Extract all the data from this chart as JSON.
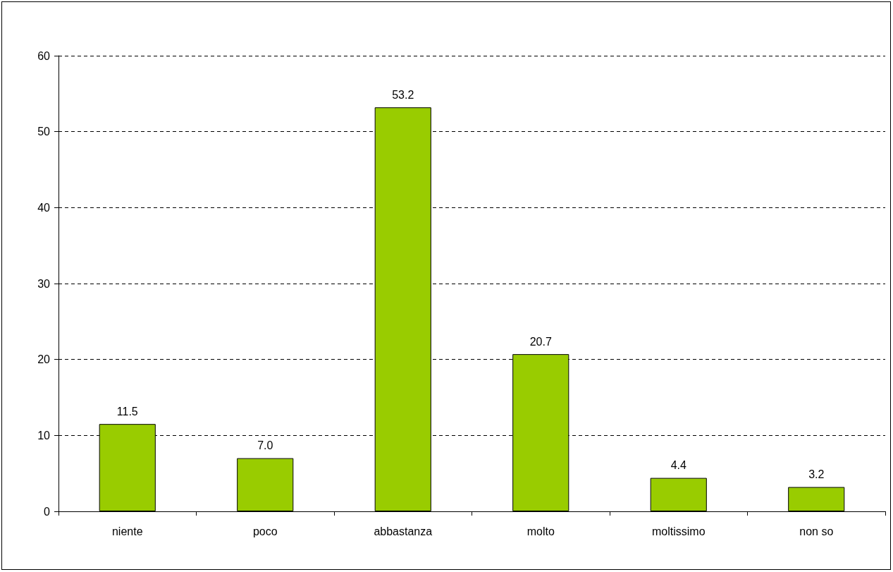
{
  "chart_data": {
    "type": "bar",
    "categories": [
      "niente",
      "poco",
      "abbastanza",
      "molto",
      "moltissimo",
      "non so"
    ],
    "values": [
      11.5,
      7.0,
      53.2,
      20.7,
      4.4,
      3.2
    ],
    "value_labels": [
      "11.5",
      "7.0",
      "53.2",
      "20.7",
      "4.4",
      "3.2"
    ],
    "color": "#99cc00",
    "ylim": [
      0,
      60
    ],
    "yticks": [
      0,
      10,
      20,
      30,
      40,
      50,
      60
    ],
    "grid": "y"
  }
}
